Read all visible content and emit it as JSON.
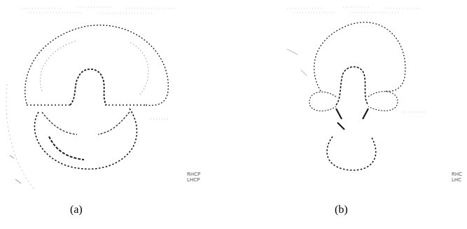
{
  "figure": {
    "panels": [
      {
        "caption": "(a)",
        "legend": [
          "RHCP",
          "LHCP"
        ]
      },
      {
        "caption": "(b)",
        "legend": [
          "RHC",
          "LHC"
        ]
      }
    ],
    "colors": {
      "ink": "#1a1a1a",
      "faint": "#bdbdbd",
      "legend": "#555555"
    }
  }
}
